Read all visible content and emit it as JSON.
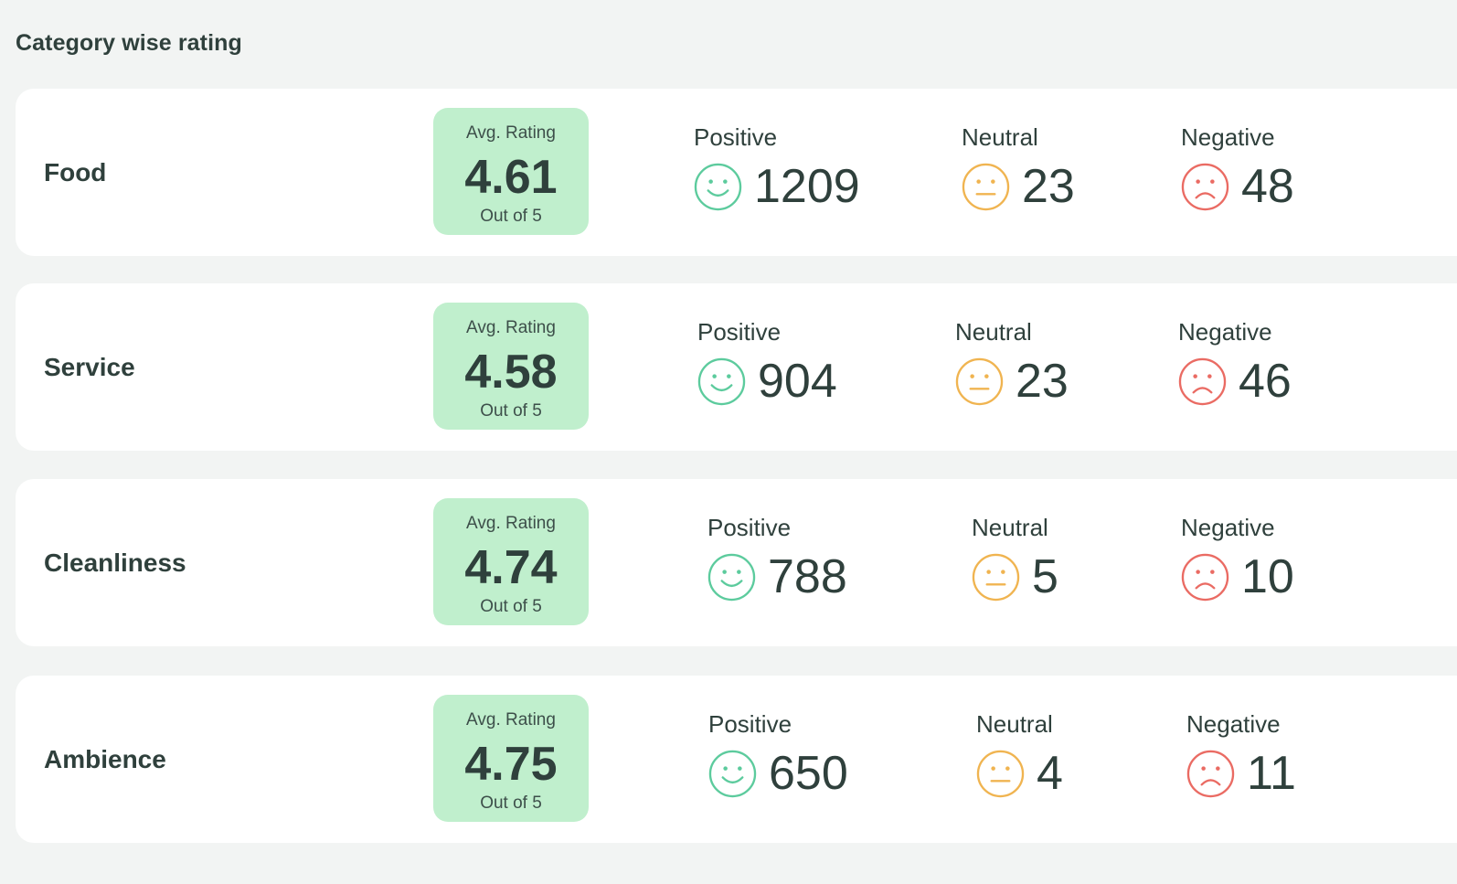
{
  "title": "Category wise rating",
  "colors": {
    "positive": "#5ccb9d",
    "neutral": "#f0b450",
    "negative": "#ea6b63",
    "avg_box": "#c0efcd",
    "text": "#2f403c"
  },
  "categories": [
    {
      "name": "Food",
      "avg_label": "Avg. Rating",
      "avg_value": "4.61",
      "avg_out_of": "Out of 5",
      "positive": {
        "label": "Positive",
        "count": "1209",
        "icon": "smile-icon"
      },
      "neutral": {
        "label": "Neutral",
        "count": "23",
        "icon": "neutral-face-icon"
      },
      "negative": {
        "label": "Negative",
        "count": "48",
        "icon": "frown-icon"
      }
    },
    {
      "name": "Service",
      "avg_label": "Avg. Rating",
      "avg_value": "4.58",
      "avg_out_of": "Out of 5",
      "positive": {
        "label": "Positive",
        "count": "904",
        "icon": "smile-icon"
      },
      "neutral": {
        "label": "Neutral",
        "count": "23",
        "icon": "neutral-face-icon"
      },
      "negative": {
        "label": "Negative",
        "count": "46",
        "icon": "frown-icon"
      }
    },
    {
      "name": "Cleanliness",
      "avg_label": "Avg. Rating",
      "avg_value": "4.74",
      "avg_out_of": "Out of 5",
      "positive": {
        "label": "Positive",
        "count": "788",
        "icon": "smile-icon"
      },
      "neutral": {
        "label": "Neutral",
        "count": "5",
        "icon": "neutral-face-icon"
      },
      "negative": {
        "label": "Negative",
        "count": "10",
        "icon": "frown-icon"
      }
    },
    {
      "name": "Ambience",
      "avg_label": "Avg. Rating",
      "avg_value": "4.75",
      "avg_out_of": "Out of 5",
      "positive": {
        "label": "Positive",
        "count": "650",
        "icon": "smile-icon"
      },
      "neutral": {
        "label": "Neutral",
        "count": "4",
        "icon": "neutral-face-icon"
      },
      "negative": {
        "label": "Negative",
        "count": "11",
        "icon": "frown-icon"
      }
    }
  ]
}
